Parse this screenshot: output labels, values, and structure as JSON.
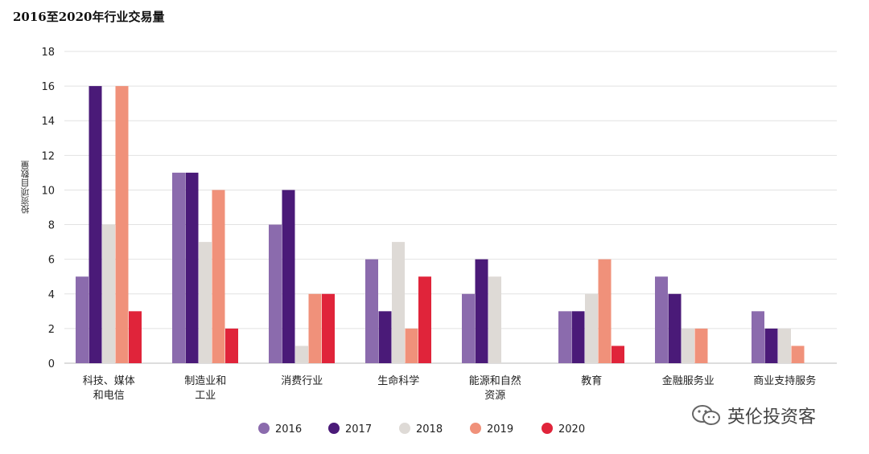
{
  "title": "2016至2020年行业交易量",
  "watermark": "英伦投资客",
  "chart_data": {
    "type": "bar",
    "title": "2016至2020年行业交易量",
    "ylabel": "投资项目数量",
    "ylim": [
      0,
      18
    ],
    "yticks": [
      0,
      2,
      4,
      6,
      8,
      10,
      12,
      14,
      16,
      18
    ],
    "grid": true,
    "legend_position": "bottom",
    "categories": [
      [
        "科技、媒体",
        "和电信"
      ],
      [
        "制造业和",
        "工业"
      ],
      [
        "消费行业"
      ],
      [
        "生命科学"
      ],
      [
        "能源和自然",
        "资源"
      ],
      [
        "教育"
      ],
      [
        "金融服务业"
      ],
      [
        "商业支持服务"
      ]
    ],
    "series": [
      {
        "name": "2016",
        "color": "#8B6BAD",
        "values": [
          5,
          11,
          8,
          6,
          4,
          3,
          5,
          3
        ]
      },
      {
        "name": "2017",
        "color": "#4A1A78",
        "values": [
          16,
          11,
          10,
          3,
          6,
          3,
          4,
          2
        ]
      },
      {
        "name": "2018",
        "color": "#DEDAD6",
        "values": [
          8,
          7,
          1,
          7,
          5,
          4,
          2,
          2
        ]
      },
      {
        "name": "2019",
        "color": "#F0917A",
        "values": [
          16,
          10,
          4,
          2,
          0,
          6,
          2,
          1
        ]
      },
      {
        "name": "2020",
        "color": "#E0243A",
        "values": [
          3,
          2,
          4,
          5,
          0,
          1,
          0,
          0
        ]
      }
    ]
  }
}
